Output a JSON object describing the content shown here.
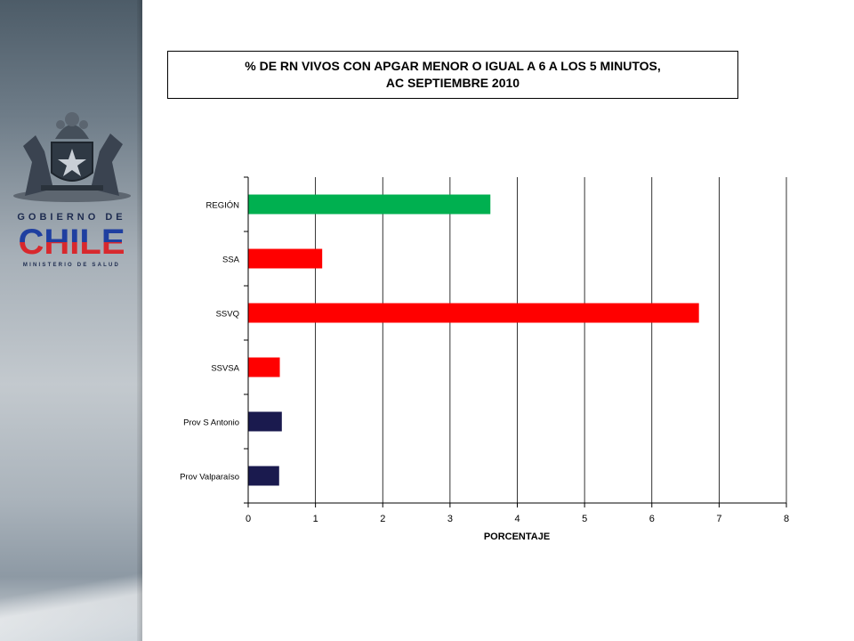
{
  "header": {
    "title_line1": "% DE RN VIVOS  CON APGAR MENOR O IGUAL A 6 A LOS 5 MINUTOS,",
    "title_line2": "AC SEPTIEMBRE 2010"
  },
  "brand": {
    "line1": "GOBIERNO DE",
    "line2": "CHILE",
    "line3": "MINISTERIO DE SALUD"
  },
  "chart_data": {
    "type": "bar",
    "orientation": "horizontal",
    "categories": [
      "REGIÓN",
      "SSA",
      "SSVQ",
      "SSVSA",
      "Prov S Antonio",
      "Prov Valparaíso"
    ],
    "values": [
      3.6,
      1.1,
      6.7,
      0.47,
      0.5,
      0.46
    ],
    "colors": [
      "#00b050",
      "#ff0000",
      "#ff0000",
      "#ff0000",
      "#1a1a4e",
      "#1a1a4e"
    ],
    "xlabel": "PORCENTAJE",
    "ylabel": "",
    "xlim": [
      0,
      8
    ],
    "xticks": [
      "0",
      "1",
      "2",
      "3",
      "4",
      "5",
      "6",
      "7",
      "8"
    ],
    "grid": true,
    "legend": "none"
  }
}
